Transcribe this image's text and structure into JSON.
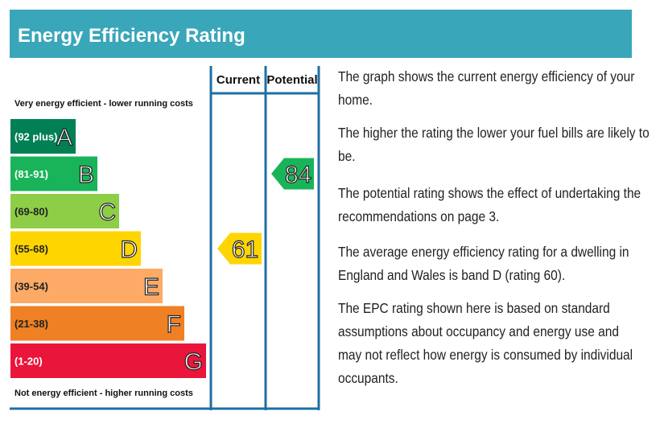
{
  "header": {
    "title": "Energy Efficiency Rating"
  },
  "columns": {
    "current": "Current",
    "potential": "Potential"
  },
  "top_label": "Very energy efficient - lower running costs",
  "bottom_label": "Not energy efficient - higher running costs",
  "bands": [
    {
      "range": "(92 plus)",
      "letter": "A",
      "color": "#008054"
    },
    {
      "range": "(81-91)",
      "letter": "B",
      "color": "#19b459"
    },
    {
      "range": "(69-80)",
      "letter": "C",
      "color": "#8dce46"
    },
    {
      "range": "(55-68)",
      "letter": "D",
      "color": "#ffd500"
    },
    {
      "range": "(39-54)",
      "letter": "E",
      "color": "#fcaa65"
    },
    {
      "range": "(21-38)",
      "letter": "F",
      "color": "#ef8023"
    },
    {
      "range": "(1-20)",
      "letter": "G",
      "color": "#e9153b"
    }
  ],
  "current": {
    "value": "61",
    "band": "D"
  },
  "potential": {
    "value": "84",
    "band": "B"
  },
  "notes": [
    [
      "The graph shows the current energy efficiency of your",
      "home."
    ],
    [
      "The higher the rating the lower your fuel bills are likely to",
      "be."
    ],
    [
      "The potential rating shows the effect of undertaking the",
      "recommendations on page 3."
    ],
    [
      "The average energy efficiency rating for a dwelling in",
      "England and Wales is band D (rating 60)."
    ],
    [
      "The EPC rating shown here is based on standard",
      "assumptions about occupancy and energy use and",
      "may not reflect how energy is consumed by individual",
      "occupants."
    ]
  ]
}
